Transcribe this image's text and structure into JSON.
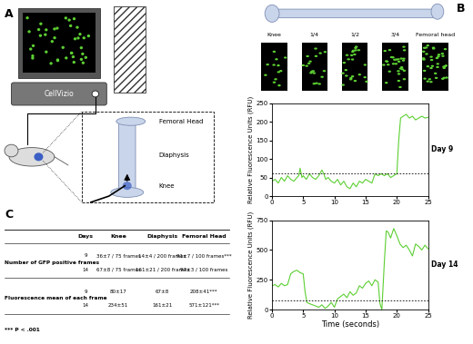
{
  "panel_labels": [
    "A",
    "B",
    "C"
  ],
  "panel_a": {
    "device": "CellVizio",
    "bone_labels": [
      "Femoral Head",
      "Diaphysis",
      "Knee"
    ]
  },
  "panel_b": {
    "positions": [
      "Knee",
      "1/4",
      "1/2",
      "3/4",
      "Femoral head"
    ]
  },
  "chart_data": [
    {
      "type": "line",
      "annotation": "Day 9",
      "y_label": "Relative Fluorescence Units (RFU)",
      "color": "#5ccf32",
      "x": [
        0,
        0.5,
        1,
        1.5,
        2,
        2.5,
        3,
        3.5,
        4,
        4.3,
        4.5,
        4.8,
        5,
        5.5,
        6,
        6.5,
        7,
        7.5,
        8,
        8.3,
        8.6,
        9,
        9.5,
        10,
        10.5,
        11,
        11.5,
        12,
        12.5,
        13,
        13.5,
        14,
        14.5,
        15,
        15.5,
        16,
        16.5,
        17,
        17.5,
        18,
        18.5,
        19,
        19.5,
        20,
        20.3,
        20.6,
        21,
        21.5,
        22,
        22.5,
        23,
        23.5,
        24,
        24.5,
        25
      ],
      "values": [
        40,
        45,
        35,
        50,
        40,
        55,
        45,
        40,
        50,
        55,
        75,
        50,
        55,
        45,
        60,
        50,
        45,
        55,
        70,
        60,
        45,
        50,
        40,
        35,
        45,
        30,
        40,
        25,
        20,
        35,
        25,
        40,
        35,
        45,
        40,
        35,
        60,
        55,
        60,
        55,
        60,
        50,
        55,
        60,
        150,
        210,
        215,
        220,
        210,
        215,
        205,
        210,
        215,
        210,
        212
      ],
      "threshold": 60,
      "xlim": [
        0,
        25
      ],
      "xticks": [
        0,
        5,
        10,
        15,
        20,
        25
      ],
      "ylim": [
        0,
        250
      ],
      "yticks": [
        0,
        50,
        100,
        150,
        200,
        250
      ]
    },
    {
      "type": "line",
      "annotation": "Day 14",
      "x_label": "Time (seconds)",
      "y_label": "Relative Fluorescence Units (RFU)",
      "color": "#5ccf32",
      "x": [
        0,
        0.5,
        1,
        1.5,
        2,
        2.5,
        3,
        3.5,
        4,
        4.5,
        5,
        5.3,
        5.6,
        6,
        6.5,
        7,
        7.5,
        8,
        8.5,
        9,
        9.5,
        10,
        10.5,
        11,
        11.5,
        12,
        12.5,
        13,
        13.5,
        14,
        14.5,
        15,
        15.5,
        16,
        16.5,
        17,
        17.3,
        17.6,
        18,
        18.3,
        18.6,
        19,
        19.5,
        20,
        20.5,
        21,
        21.5,
        22,
        22.5,
        23,
        23.5,
        24,
        24.5,
        25
      ],
      "values": [
        200,
        210,
        190,
        220,
        200,
        210,
        300,
        320,
        330,
        310,
        300,
        150,
        60,
        50,
        40,
        30,
        20,
        40,
        10,
        30,
        60,
        20,
        90,
        110,
        130,
        100,
        150,
        120,
        140,
        200,
        180,
        220,
        240,
        200,
        250,
        230,
        50,
        0,
        400,
        660,
        650,
        600,
        680,
        620,
        550,
        520,
        540,
        500,
        450,
        550,
        530,
        500,
        540,
        510
      ],
      "threshold": 75,
      "xlim": [
        0,
        25
      ],
      "xticks": [
        0,
        5,
        10,
        15,
        20,
        25
      ],
      "ylim": [
        0,
        750
      ],
      "yticks": [
        0,
        250,
        500,
        750
      ]
    }
  ],
  "table": {
    "header": [
      "Days",
      "Knee",
      "Diaphysis",
      "Femoral Head"
    ],
    "groups": [
      {
        "label": "Number of GFP positive frames",
        "rows": [
          [
            "9",
            "36±7 / 75 frames",
            "14±4 / 200 frames",
            "91±7 / 100 frames***"
          ],
          [
            "14",
            "67±8 / 75 frames",
            "161±21 / 200 frames",
            "97±3 / 100 frames"
          ]
        ]
      },
      {
        "label": "Fluorescence mean of each frame",
        "rows": [
          [
            "9",
            "80±17",
            "67±8",
            "208±41***"
          ],
          [
            "14",
            "234±51",
            "161±21",
            "571±121***"
          ]
        ]
      }
    ],
    "footnote": "*** P < .001"
  }
}
